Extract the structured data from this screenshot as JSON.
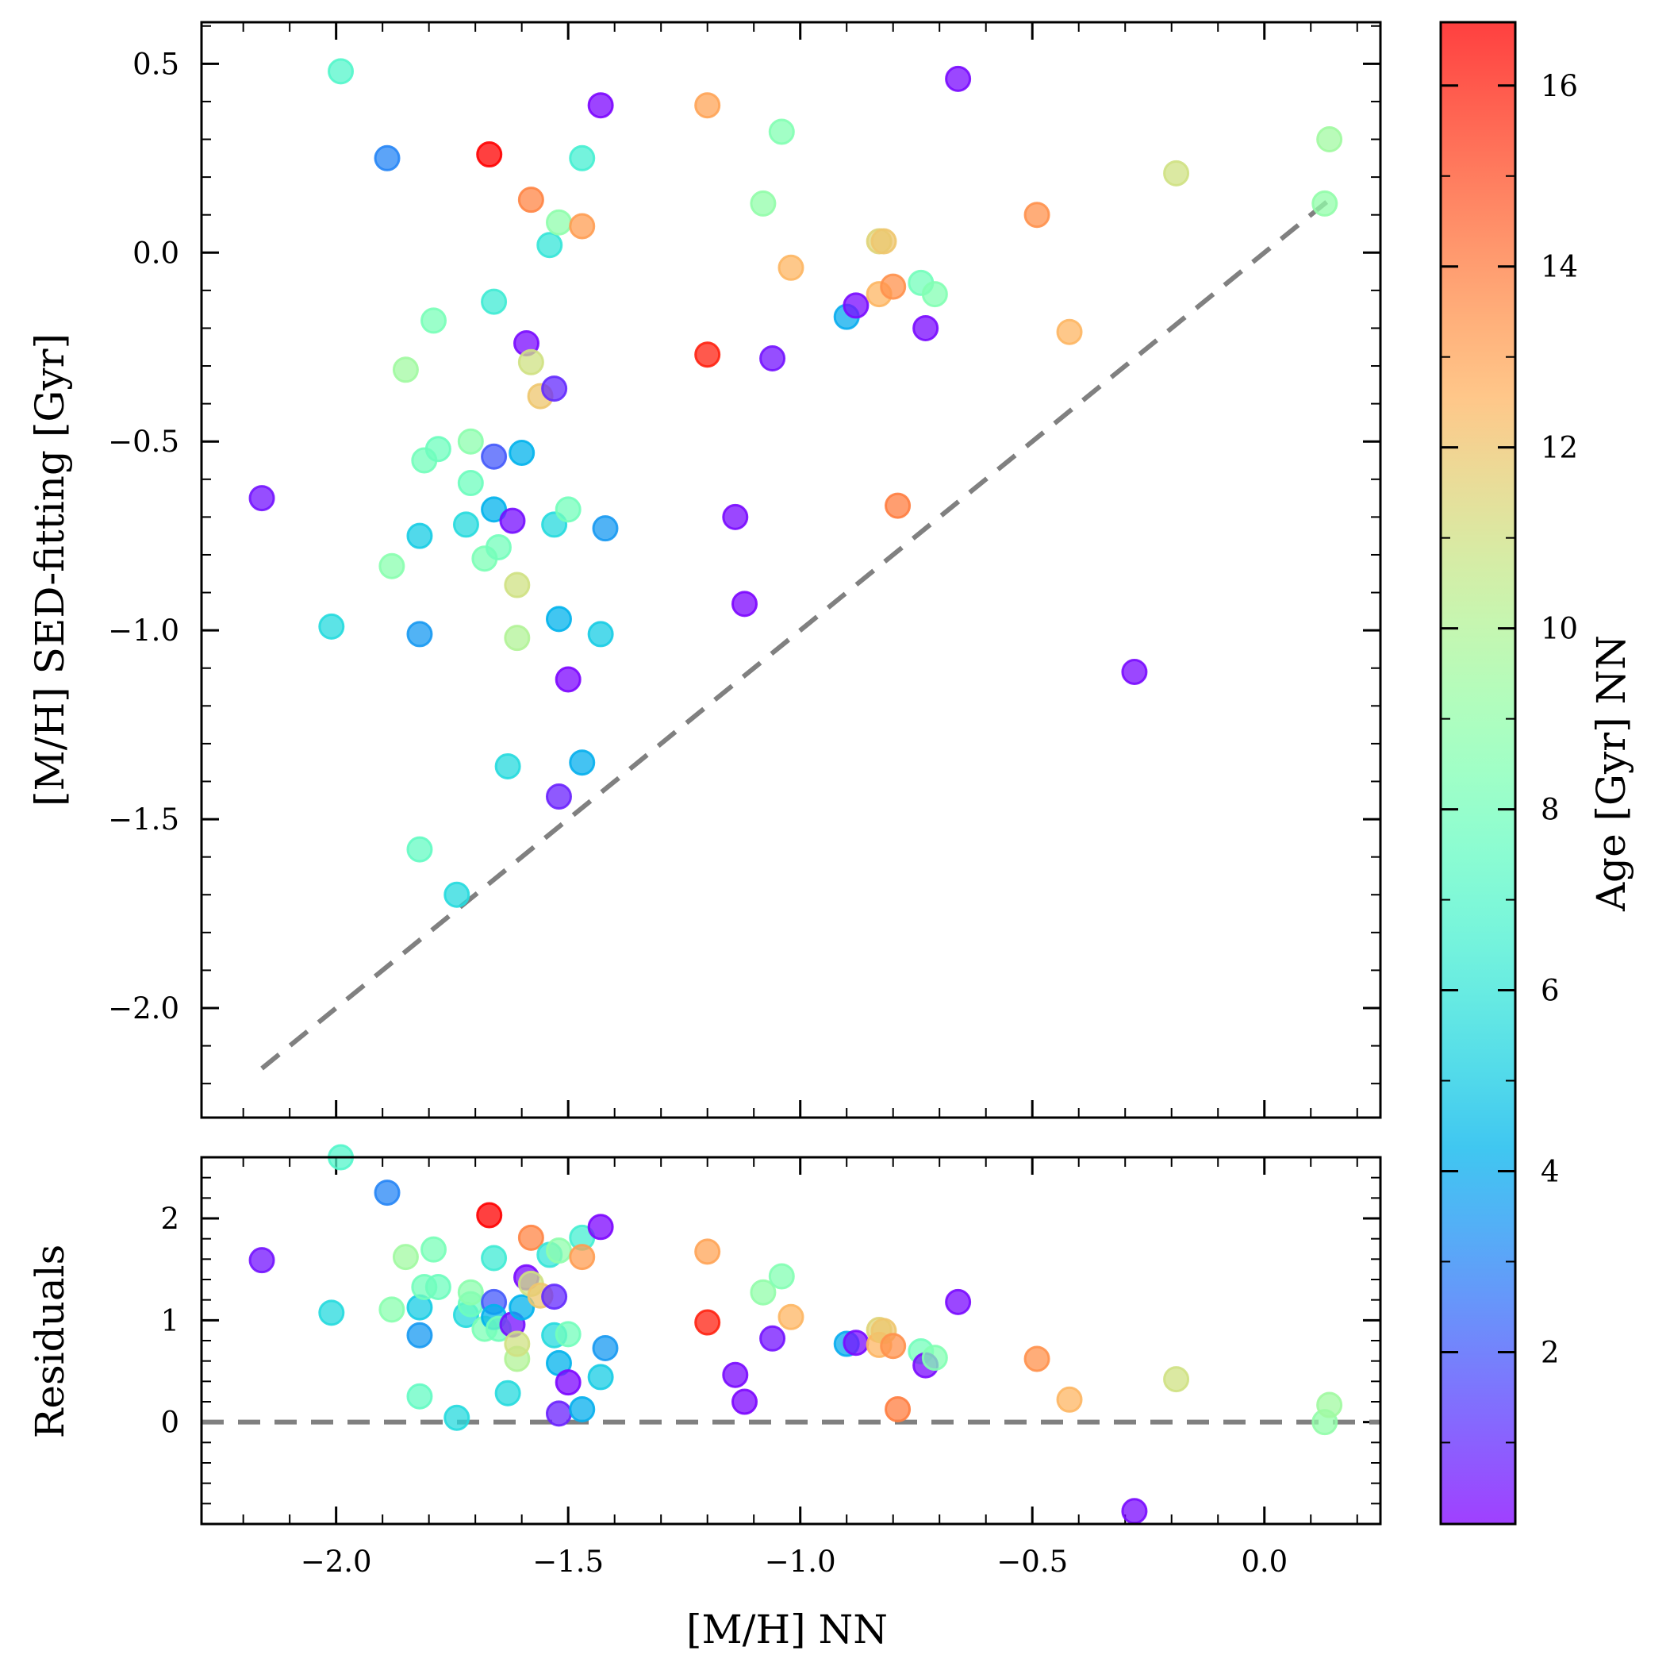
{
  "chart_data": {
    "type": "scatter",
    "colormap": "rainbow",
    "dot_alpha": 0.75,
    "main_panel": {
      "ylabel": "[M/H] SED-fitting [Gyr]",
      "xlim": [
        -2.29,
        0.25
      ],
      "ylim": [
        -2.29,
        0.61
      ],
      "yticks": [
        0.5,
        0.0,
        -0.5,
        -1.0,
        -1.5,
        -2.0
      ],
      "ytick_labels": [
        "0.5",
        "0.0",
        "−0.5",
        "−1.0",
        "−1.5",
        "−2.0"
      ],
      "reference_line": {
        "style": "dashed",
        "color": "#808080",
        "x": [
          -2.16,
          0.14
        ],
        "y": [
          -2.16,
          0.14
        ]
      }
    },
    "residual_panel": {
      "ylabel": "Residuals",
      "ylim": [
        -1.0,
        2.6
      ],
      "yticks": [
        2,
        1,
        0
      ],
      "ytick_labels": [
        "2",
        "1",
        "0"
      ],
      "zero_line": {
        "style": "dashed",
        "color": "#808080",
        "y": 0
      }
    },
    "x_axis": {
      "label": "[M/H] NN",
      "ticks": [
        -2.0,
        -1.5,
        -1.0,
        -0.5,
        0.0
      ],
      "tick_labels": [
        "−2.0",
        "−1.5",
        "−1.0",
        "−0.5",
        "0.0"
      ]
    },
    "colorbar": {
      "label": "Age [Gyr] NN",
      "min": 0.1,
      "max": 16.7,
      "ticks": [
        2,
        4,
        6,
        8,
        10,
        12,
        14,
        16
      ],
      "tick_labels": [
        "2",
        "4",
        "6",
        "8",
        "10",
        "12",
        "14",
        "16"
      ]
    },
    "points": [
      {
        "x": -2.16,
        "y": -0.65,
        "age": 0.5
      },
      {
        "x": -2.01,
        "y": -0.99,
        "age": 5.5
      },
      {
        "x": -1.99,
        "y": 0.48,
        "age": 7.0
      },
      {
        "x": -1.89,
        "y": 0.25,
        "age": 3.0
      },
      {
        "x": -1.88,
        "y": -0.83,
        "age": 8.7
      },
      {
        "x": -1.85,
        "y": -0.31,
        "age": 9.5
      },
      {
        "x": -1.82,
        "y": -1.58,
        "age": 7.5
      },
      {
        "x": -1.82,
        "y": -0.75,
        "age": 5.0
      },
      {
        "x": -1.82,
        "y": -1.01,
        "age": 3.5
      },
      {
        "x": -1.81,
        "y": -0.55,
        "age": 8.0
      },
      {
        "x": -1.79,
        "y": -0.18,
        "age": 8.2
      },
      {
        "x": -1.78,
        "y": -0.52,
        "age": 7.8
      },
      {
        "x": -1.74,
        "y": -1.7,
        "age": 5.5
      },
      {
        "x": -1.72,
        "y": -0.72,
        "age": 5.5
      },
      {
        "x": -1.71,
        "y": -0.61,
        "age": 7.8
      },
      {
        "x": -1.71,
        "y": -0.5,
        "age": 8.8
      },
      {
        "x": -1.68,
        "y": -0.81,
        "age": 8.3
      },
      {
        "x": -1.67,
        "y": 0.26,
        "age": 16.7
      },
      {
        "x": -1.66,
        "y": -0.54,
        "age": 2.0
      },
      {
        "x": -1.66,
        "y": -0.68,
        "age": 4.2
      },
      {
        "x": -1.66,
        "y": -0.13,
        "age": 6.3
      },
      {
        "x": -1.65,
        "y": -0.78,
        "age": 8.0
      },
      {
        "x": -1.63,
        "y": -1.36,
        "age": 5.5
      },
      {
        "x": -1.62,
        "y": -0.71,
        "age": 0.4
      },
      {
        "x": -1.61,
        "y": -1.02,
        "age": 10.0
      },
      {
        "x": -1.61,
        "y": -0.88,
        "age": 11.0
      },
      {
        "x": -1.6,
        "y": -0.53,
        "age": 4.2
      },
      {
        "x": -1.59,
        "y": -0.24,
        "age": 0.3
      },
      {
        "x": -1.58,
        "y": -0.29,
        "age": 11.0
      },
      {
        "x": -1.58,
        "y": 0.14,
        "age": 13.8
      },
      {
        "x": -1.56,
        "y": -0.38,
        "age": 12.0
      },
      {
        "x": -1.54,
        "y": 0.02,
        "age": 6.0
      },
      {
        "x": -1.53,
        "y": -0.36,
        "age": 1.0
      },
      {
        "x": -1.53,
        "y": -0.72,
        "age": 5.5
      },
      {
        "x": -1.52,
        "y": -1.44,
        "age": 0.8
      },
      {
        "x": -1.52,
        "y": -0.97,
        "age": 4.2
      },
      {
        "x": -1.52,
        "y": 0.08,
        "age": 8.9
      },
      {
        "x": -1.5,
        "y": -0.68,
        "age": 8.0
      },
      {
        "x": -1.5,
        "y": -1.13,
        "age": 0.2
      },
      {
        "x": -1.47,
        "y": 0.25,
        "age": 6.5
      },
      {
        "x": -1.47,
        "y": 0.07,
        "age": 13.2
      },
      {
        "x": -1.47,
        "y": -1.35,
        "age": 4.1
      },
      {
        "x": -1.43,
        "y": 0.39,
        "age": 0.2
      },
      {
        "x": -1.43,
        "y": -1.01,
        "age": 5.0
      },
      {
        "x": -1.42,
        "y": -0.73,
        "age": 3.5
      },
      {
        "x": -1.2,
        "y": 0.39,
        "age": 13.0
      },
      {
        "x": -1.2,
        "y": -0.27,
        "age": 16.0
      },
      {
        "x": -1.14,
        "y": -0.7,
        "age": 0.3
      },
      {
        "x": -1.12,
        "y": -0.93,
        "age": 0.2
      },
      {
        "x": -1.08,
        "y": 0.13,
        "age": 9.0
      },
      {
        "x": -1.06,
        "y": -0.28,
        "age": 0.5
      },
      {
        "x": -1.04,
        "y": 0.32,
        "age": 8.5
      },
      {
        "x": -1.02,
        "y": -0.04,
        "age": 12.5
      },
      {
        "x": -0.9,
        "y": -0.17,
        "age": 4.0
      },
      {
        "x": -0.88,
        "y": -0.14,
        "age": 0.3
      },
      {
        "x": -0.83,
        "y": 0.03,
        "age": 11.5
      },
      {
        "x": -0.83,
        "y": -0.11,
        "age": 12.5
      },
      {
        "x": -0.82,
        "y": 0.03,
        "age": 12.0
      },
      {
        "x": -0.8,
        "y": -0.09,
        "age": 13.5
      },
      {
        "x": -0.79,
        "y": -0.67,
        "age": 14.0
      },
      {
        "x": -0.74,
        "y": -0.08,
        "age": 8.0
      },
      {
        "x": -0.73,
        "y": -0.2,
        "age": 0.3
      },
      {
        "x": -0.71,
        "y": -0.11,
        "age": 8.5
      },
      {
        "x": -0.66,
        "y": 0.46,
        "age": 0.3
      },
      {
        "x": -0.49,
        "y": 0.1,
        "age": 13.5
      },
      {
        "x": -0.42,
        "y": -0.21,
        "age": 12.5
      },
      {
        "x": -0.28,
        "y": -1.11,
        "age": 0.3
      },
      {
        "x": -0.19,
        "y": 0.21,
        "age": 11.0
      },
      {
        "x": 0.13,
        "y": 0.13,
        "age": 9.0
      },
      {
        "x": 0.14,
        "y": 0.3,
        "age": 9.5
      }
    ]
  }
}
